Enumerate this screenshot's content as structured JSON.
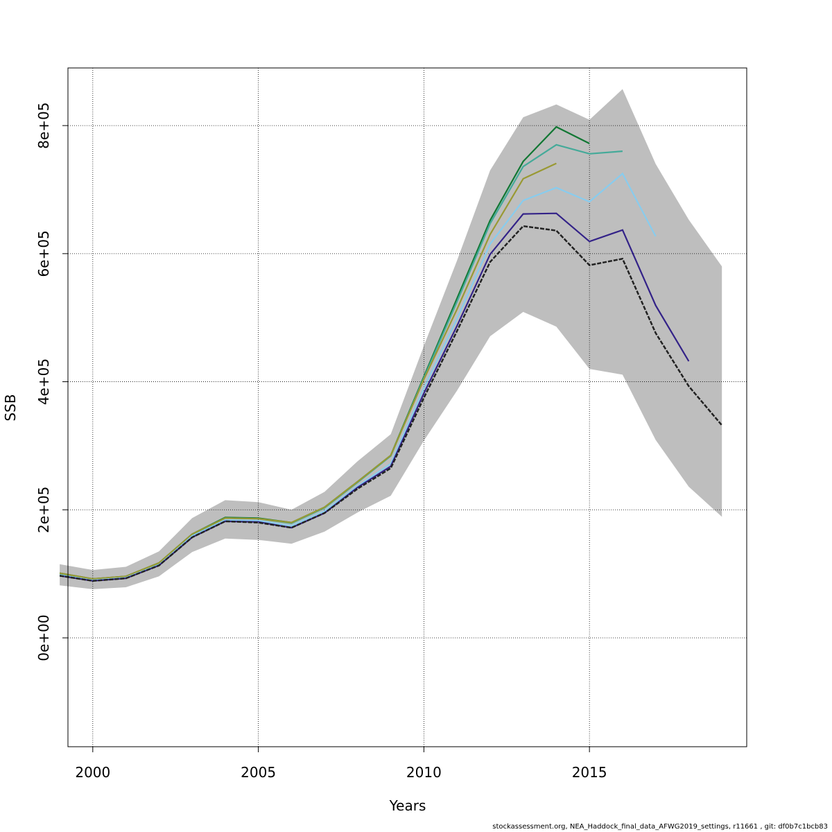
{
  "chart_data": {
    "type": "line",
    "title": "",
    "xlabel": "Years",
    "ylabel": "SSB",
    "xlim": [
      1999.25,
      2019.75
    ],
    "ylim": [
      -170000,
      890000
    ],
    "x_ticks": [
      2000,
      2005,
      2010,
      2015
    ],
    "x_tick_labels": [
      "2000",
      "2005",
      "2010",
      "2015"
    ],
    "y_ticks": [
      0,
      200000,
      400000,
      600000,
      800000
    ],
    "y_tick_labels": [
      "0e+00",
      "2e+05",
      "4e+05",
      "6e+05",
      "8e+05"
    ],
    "grid": true,
    "confidence_band": {
      "x": [
        1999,
        2000,
        2001,
        2002,
        2003,
        2004,
        2005,
        2006,
        2007,
        2008,
        2009,
        2010,
        2011,
        2012,
        2013,
        2014,
        2015,
        2016,
        2017,
        2018,
        2019
      ],
      "lower": [
        82000,
        76000,
        79000,
        96000,
        134000,
        155000,
        153000,
        147000,
        166000,
        196000,
        222000,
        308000,
        386000,
        471000,
        509000,
        486000,
        420000,
        411000,
        309000,
        236000,
        189000
      ],
      "upper": [
        115000,
        106000,
        111000,
        135000,
        187000,
        215000,
        212000,
        200000,
        228000,
        276000,
        318000,
        456000,
        589000,
        730000,
        813000,
        833000,
        809000,
        857000,
        740000,
        653000,
        580000
      ],
      "color": "#bebebe"
    },
    "series": [
      {
        "x": [
          1999,
          2000,
          2001,
          2002,
          2003,
          2004,
          2005,
          2006,
          2007,
          2008,
          2009,
          2010,
          2011,
          2012,
          2013,
          2014,
          2015
        ],
        "values": [
          101000,
          92000,
          96000,
          117000,
          162000,
          188000,
          187000,
          180000,
          204000,
          244000,
          285000,
          408000,
          530000,
          652000,
          744000,
          798000,
          772000
        ],
        "color": "#117733",
        "dash": false
      },
      {
        "x": [
          1999,
          2000,
          2001,
          2002,
          2003,
          2004,
          2005,
          2006,
          2007,
          2008,
          2009,
          2010,
          2011,
          2012,
          2013,
          2014,
          2015,
          2016
        ],
        "values": [
          100000,
          91000,
          95000,
          116000,
          161000,
          187000,
          186000,
          179000,
          203000,
          243000,
          284000,
          406000,
          525000,
          647000,
          736000,
          770000,
          756000,
          760000
        ],
        "color": "#44aa99",
        "dash": false
      },
      {
        "x": [
          1999,
          2000,
          2001,
          2002,
          2003,
          2004,
          2005,
          2006,
          2007,
          2008,
          2009,
          2010,
          2011,
          2012,
          2013,
          2014
        ],
        "values": [
          101000,
          92000,
          96000,
          117000,
          162000,
          187000,
          186000,
          180000,
          204000,
          244000,
          285000,
          404000,
          513000,
          630000,
          717000,
          741000
        ],
        "color": "#999933",
        "dash": false
      },
      {
        "x": [
          1999,
          2000,
          2001,
          2002,
          2003,
          2004,
          2005,
          2006,
          2007,
          2008,
          2009,
          2010,
          2011,
          2012,
          2013,
          2014,
          2015,
          2016,
          2017
        ],
        "values": [
          98000,
          90000,
          94000,
          114000,
          159000,
          184000,
          183000,
          175000,
          198000,
          237000,
          272000,
          390000,
          498000,
          615000,
          683000,
          703000,
          681000,
          725000,
          627000
        ],
        "color": "#88ccee",
        "dash": false
      },
      {
        "x": [
          1999,
          2000,
          2001,
          2002,
          2003,
          2004,
          2005,
          2006,
          2007,
          2008,
          2009,
          2010,
          2011,
          2012,
          2013,
          2014,
          2015,
          2016,
          2017,
          2018
        ],
        "values": [
          97000,
          89000,
          93000,
          113000,
          157000,
          182000,
          181000,
          172000,
          195000,
          235000,
          268000,
          382000,
          487000,
          599000,
          662000,
          663000,
          619000,
          637000,
          519000,
          432000
        ],
        "color": "#332288",
        "dash": false
      },
      {
        "x": [
          1999,
          2000,
          2001,
          2002,
          2003,
          2004,
          2005,
          2006,
          2007,
          2008,
          2009,
          2010,
          2011,
          2012,
          2013,
          2014,
          2015,
          2016,
          2017,
          2018,
          2019
        ],
        "values": [
          97000,
          89000,
          93000,
          113000,
          157000,
          182000,
          180000,
          172000,
          195000,
          233000,
          265000,
          375000,
          479000,
          587000,
          643000,
          636000,
          582000,
          592000,
          476000,
          393000,
          332000
        ],
        "color": "#222222",
        "dash": true
      }
    ]
  },
  "footer_text": "stockassessment.org, NEA_Haddock_final_data_AFWG2019_settings, r11661 , git: df0b7c1bcb83"
}
